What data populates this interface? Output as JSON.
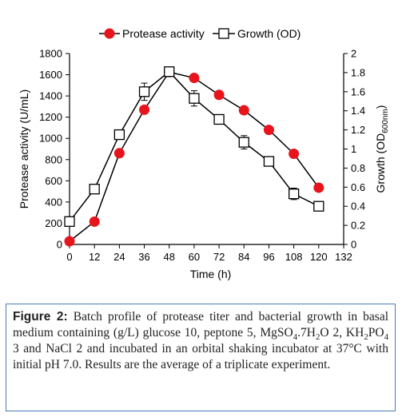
{
  "chart_data": {
    "type": "line",
    "x": [
      0,
      12,
      24,
      36,
      48,
      60,
      72,
      84,
      96,
      108,
      120
    ],
    "series": [
      {
        "name": "Protease activity",
        "axis": "left",
        "marker": "filled-circle",
        "color": "#e8141b",
        "values": [
          30,
          215,
          860,
          1270,
          1625,
          1570,
          1410,
          1265,
          1080,
          855,
          535
        ]
      },
      {
        "name": "Growth (OD)",
        "axis": "right",
        "marker": "open-square",
        "color": "#000000",
        "values": [
          0.24,
          0.58,
          1.15,
          1.6,
          1.81,
          1.53,
          1.31,
          1.07,
          0.87,
          0.53,
          0.4
        ],
        "error": [
          0.03,
          0.03,
          0.05,
          0.09,
          0.02,
          0.08,
          0.03,
          0.07,
          0.03,
          0.06,
          0.02
        ]
      }
    ],
    "xlabel": "Time (h)",
    "ylabel": "Protease activity (U/mL)",
    "y2label_main": "Growth (OD",
    "y2label_sub": "600nm",
    "y2label_end": ")",
    "xlim": [
      0,
      132
    ],
    "xticks": [
      0,
      12,
      24,
      36,
      48,
      60,
      72,
      84,
      96,
      108,
      120,
      132
    ],
    "ylim": [
      0,
      1800
    ],
    "yticks": [
      0,
      200,
      400,
      600,
      800,
      1000,
      1200,
      1400,
      1600,
      1800
    ],
    "y2lim": [
      0,
      2
    ],
    "y2ticks": [
      "0",
      "0.2",
      "0.4",
      "0.6",
      "0.8",
      "1",
      "1.2",
      "1.4",
      "1.6",
      "1.8",
      "2"
    ],
    "grid": false,
    "legend": "top-center"
  },
  "caption": {
    "label": "Figure 2:",
    "p1": " Batch profile of protease titer and bacterial growth in basal medium containing (g/L) glucose 10, peptone 5, MgSO",
    "s1": "4",
    "p2": ".7H",
    "s2": "2",
    "p3": "O 2, KH",
    "s3": "2",
    "p4": "PO",
    "s4": "4",
    "p5": " 3 and NaCl 2 and incubated in an orbital shaking incubator at 37°C with initial pH 7.0. Results are the average of a triplicate experiment."
  }
}
